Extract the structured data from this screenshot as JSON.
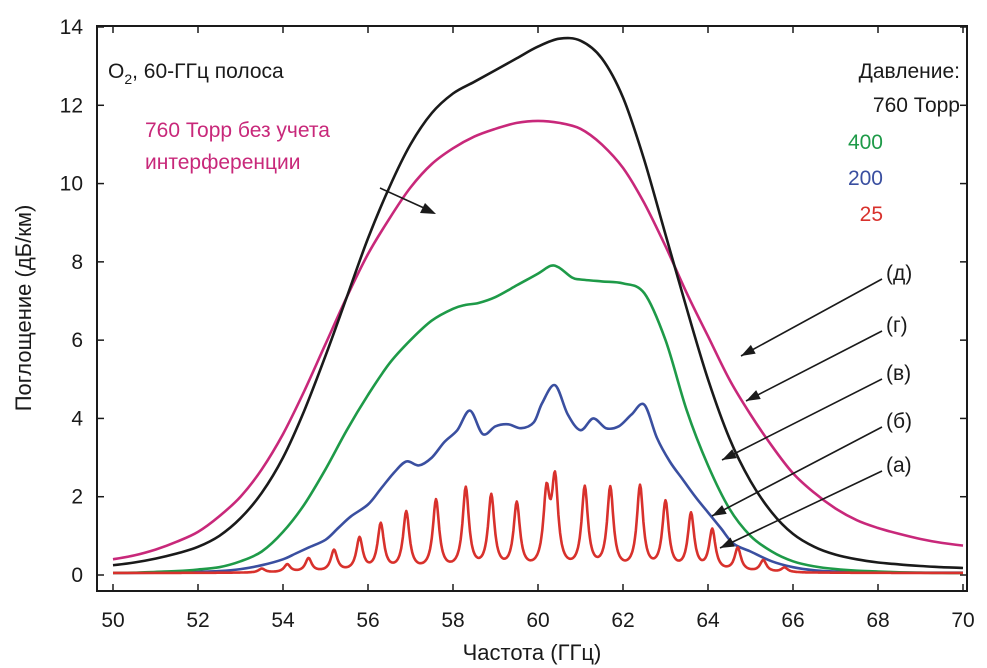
{
  "chart_data": {
    "type": "line",
    "xlabel": "Частота  (ГГц)",
    "ylabel": "Поглощение  (дБ/км)",
    "xlim": [
      50,
      70
    ],
    "ylim": [
      0,
      14
    ],
    "xticks": [
      50,
      52,
      54,
      56,
      58,
      60,
      62,
      64,
      66,
      68,
      70
    ],
    "yticks": [
      0,
      2,
      4,
      6,
      8,
      10,
      12,
      14
    ],
    "grid": false,
    "species_label": {
      "pre": "O",
      "sub": "2",
      "post": ", 60-ГГц полоса"
    },
    "legend_title": "Давление:",
    "legend_entries": [
      {
        "text": "760 Торр",
        "color": "#1a1a1a"
      },
      {
        "text": "400",
        "color": "#1e9a48"
      },
      {
        "text": "200",
        "color": "#3a4fa0"
      },
      {
        "text": "25",
        "color": "#d8312c"
      }
    ],
    "annotation": {
      "line1": "760 Торр без учета",
      "line2": "интерференции",
      "color": "#c8287a"
    },
    "curve_labels": [
      "(д)",
      "(г)",
      "(в)",
      "(б)",
      "(а)"
    ],
    "series": [
      {
        "name": "760 Торр",
        "color": "#1a1a1a",
        "x": [
          50,
          50.5,
          51,
          51.5,
          52,
          52.5,
          53,
          53.5,
          54,
          54.5,
          55,
          55.5,
          56,
          56.5,
          57,
          57.5,
          58,
          58.5,
          59,
          59.5,
          60,
          60.5,
          61,
          61.5,
          62,
          62.5,
          63,
          63.5,
          64,
          64.5,
          65,
          65.5,
          66,
          66.5,
          67,
          67.5,
          68,
          68.5,
          69,
          69.5,
          70
        ],
        "y": [
          0.25,
          0.32,
          0.42,
          0.55,
          0.72,
          1.0,
          1.45,
          2.1,
          3.0,
          4.2,
          5.6,
          7.1,
          8.6,
          9.9,
          11.0,
          11.8,
          12.3,
          12.6,
          12.9,
          13.2,
          13.5,
          13.7,
          13.65,
          13.2,
          12.2,
          10.6,
          8.7,
          6.8,
          5.0,
          3.5,
          2.4,
          1.6,
          1.05,
          0.72,
          0.52,
          0.4,
          0.32,
          0.27,
          0.23,
          0.2,
          0.18
        ]
      },
      {
        "name": "760 Торр без учета интерференции",
        "color": "#c8287a",
        "x": [
          50,
          50.5,
          51,
          51.5,
          52,
          52.5,
          53,
          53.5,
          54,
          54.5,
          55,
          55.5,
          56,
          56.5,
          57,
          57.5,
          58,
          58.5,
          59,
          59.5,
          60,
          60.5,
          61,
          61.5,
          62,
          62.5,
          63,
          63.5,
          64,
          64.5,
          65,
          65.5,
          66,
          66.5,
          67,
          67.5,
          68,
          68.5,
          69,
          69.5,
          70
        ],
        "y": [
          0.4,
          0.5,
          0.65,
          0.85,
          1.1,
          1.5,
          2.0,
          2.7,
          3.6,
          4.7,
          5.9,
          7.1,
          8.2,
          9.1,
          9.9,
          10.5,
          10.9,
          11.2,
          11.4,
          11.55,
          11.6,
          11.55,
          11.4,
          11.0,
          10.4,
          9.5,
          8.4,
          7.2,
          6.1,
          5.0,
          4.1,
          3.3,
          2.6,
          2.1,
          1.7,
          1.4,
          1.2,
          1.05,
          0.92,
          0.82,
          0.75
        ]
      },
      {
        "name": "400",
        "color": "#1e9a48",
        "x": [
          50,
          50.5,
          51,
          51.5,
          52,
          52.5,
          53,
          53.5,
          54,
          54.5,
          55,
          55.5,
          56,
          56.5,
          57,
          57.5,
          58,
          58.3,
          58.6,
          59,
          59.5,
          60,
          60.3,
          60.5,
          60.8,
          61,
          61.5,
          62,
          62.5,
          63,
          63.5,
          64,
          64.5,
          65,
          65.5,
          66,
          66.5,
          67,
          67.5,
          68,
          68.5,
          69,
          69.5,
          70
        ],
        "y": [
          0.05,
          0.06,
          0.08,
          0.1,
          0.14,
          0.2,
          0.35,
          0.6,
          1.1,
          1.8,
          2.7,
          3.7,
          4.6,
          5.4,
          6.0,
          6.5,
          6.8,
          6.9,
          6.95,
          7.1,
          7.4,
          7.7,
          7.9,
          7.85,
          7.6,
          7.55,
          7.5,
          7.45,
          7.2,
          6.0,
          4.2,
          2.8,
          1.7,
          1.0,
          0.6,
          0.35,
          0.22,
          0.15,
          0.11,
          0.09,
          0.07,
          0.06,
          0.05,
          0.05
        ]
      },
      {
        "name": "200",
        "color": "#3a4fa0",
        "x": [
          50,
          51,
          52,
          52.5,
          53,
          53.5,
          54,
          54.3,
          54.6,
          55,
          55.3,
          55.6,
          56,
          56.3,
          56.6,
          56.9,
          57.2,
          57.5,
          57.8,
          58.1,
          58.4,
          58.7,
          59,
          59.3,
          59.6,
          59.9,
          60.1,
          60.4,
          60.7,
          61,
          61.3,
          61.6,
          61.9,
          62.2,
          62.5,
          62.8,
          63.1,
          63.4,
          63.7,
          64,
          64.3,
          64.6,
          65,
          65.5,
          66,
          66.5,
          67,
          68,
          69,
          70
        ],
        "y": [
          0.05,
          0.06,
          0.08,
          0.1,
          0.15,
          0.25,
          0.4,
          0.55,
          0.7,
          0.9,
          1.2,
          1.5,
          1.8,
          2.2,
          2.6,
          2.9,
          2.8,
          3.0,
          3.4,
          3.7,
          4.2,
          3.6,
          3.8,
          3.85,
          3.75,
          3.9,
          4.4,
          4.85,
          4.1,
          3.7,
          4.0,
          3.75,
          3.8,
          4.1,
          4.35,
          3.5,
          2.9,
          2.45,
          2.0,
          1.6,
          1.2,
          0.8,
          0.6,
          0.35,
          0.2,
          0.12,
          0.09,
          0.07,
          0.06,
          0.06
        ]
      },
      {
        "name": "25",
        "color": "#d8312c",
        "peaks_x": [
          53.5,
          54.1,
          54.6,
          55.2,
          55.8,
          56.3,
          56.9,
          57.6,
          58.3,
          58.9,
          59.5,
          60.2,
          60.4,
          61.1,
          61.7,
          62.4,
          63.0,
          63.6,
          64.1,
          64.7,
          65.3,
          65.8
        ],
        "peaks_y": [
          0.1,
          0.2,
          0.35,
          0.55,
          0.85,
          1.2,
          1.5,
          1.8,
          2.1,
          1.9,
          1.7,
          1.85,
          2.2,
          2.1,
          2.1,
          2.15,
          1.75,
          1.45,
          1.05,
          0.6,
          0.3,
          0.12
        ],
        "baseline": 0.05
      }
    ]
  }
}
